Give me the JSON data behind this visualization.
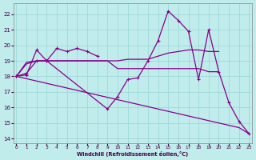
{
  "background_color": "#c0ecec",
  "grid_color": "#98d4d4",
  "line_color": "#880088",
  "xlabel": "Windchill (Refroidissement éolien,°C)",
  "xlim": [
    -0.3,
    23.3
  ],
  "ylim": [
    13.7,
    22.7
  ],
  "yticks": [
    14,
    15,
    16,
    17,
    18,
    19,
    20,
    21,
    22
  ],
  "xticks": [
    0,
    1,
    2,
    3,
    4,
    5,
    6,
    7,
    8,
    9,
    10,
    11,
    12,
    13,
    14,
    15,
    16,
    17,
    18,
    19,
    20,
    21,
    22,
    23
  ],
  "line_spiky_x": [
    0,
    1,
    2,
    3,
    9,
    10,
    11,
    12,
    13,
    14,
    15,
    16,
    17,
    18,
    19,
    20,
    21,
    22,
    23
  ],
  "line_spiky_y": [
    18.0,
    18.2,
    19.0,
    19.0,
    15.9,
    16.7,
    17.8,
    17.9,
    19.0,
    20.3,
    22.2,
    21.6,
    20.9,
    17.8,
    21.0,
    18.3,
    16.3,
    15.1,
    14.3
  ],
  "line_upper_x": [
    0,
    1,
    2,
    3,
    4,
    5,
    6,
    7,
    8
  ],
  "line_upper_y": [
    18.0,
    18.1,
    19.7,
    19.0,
    19.8,
    19.6,
    19.8,
    19.6,
    19.3
  ],
  "line_flat_x": [
    0,
    1,
    2,
    3,
    4,
    5,
    6,
    7,
    8,
    9,
    10,
    11,
    12,
    13,
    14,
    15,
    16,
    17,
    18,
    19,
    20
  ],
  "line_flat_y": [
    18.0,
    18.9,
    19.0,
    19.0,
    19.0,
    19.0,
    19.0,
    19.0,
    19.0,
    19.0,
    19.0,
    19.1,
    19.1,
    19.1,
    19.3,
    19.5,
    19.6,
    19.7,
    19.7,
    19.6,
    19.6
  ],
  "line_flat2_x": [
    0,
    1,
    2,
    3,
    4,
    5,
    6,
    7,
    8,
    9,
    10,
    11,
    12,
    13,
    14,
    15,
    16,
    17,
    18,
    19,
    20
  ],
  "line_flat2_y": [
    18.0,
    18.8,
    19.0,
    19.0,
    19.0,
    19.0,
    19.0,
    19.0,
    19.0,
    19.0,
    18.5,
    18.5,
    18.5,
    18.5,
    18.5,
    18.5,
    18.5,
    18.5,
    18.5,
    18.3,
    18.3
  ],
  "line_diag_x": [
    0,
    1,
    2,
    3,
    4,
    5,
    6,
    7,
    8,
    9,
    10,
    11,
    12,
    13,
    14,
    15,
    16,
    17,
    18,
    19,
    20,
    21,
    22,
    23
  ],
  "line_diag_y": [
    18.0,
    17.85,
    17.7,
    17.55,
    17.4,
    17.25,
    17.1,
    16.95,
    16.8,
    16.65,
    16.5,
    16.35,
    16.2,
    16.05,
    15.9,
    15.75,
    15.6,
    15.45,
    15.3,
    15.15,
    15.0,
    14.85,
    14.7,
    14.3
  ]
}
